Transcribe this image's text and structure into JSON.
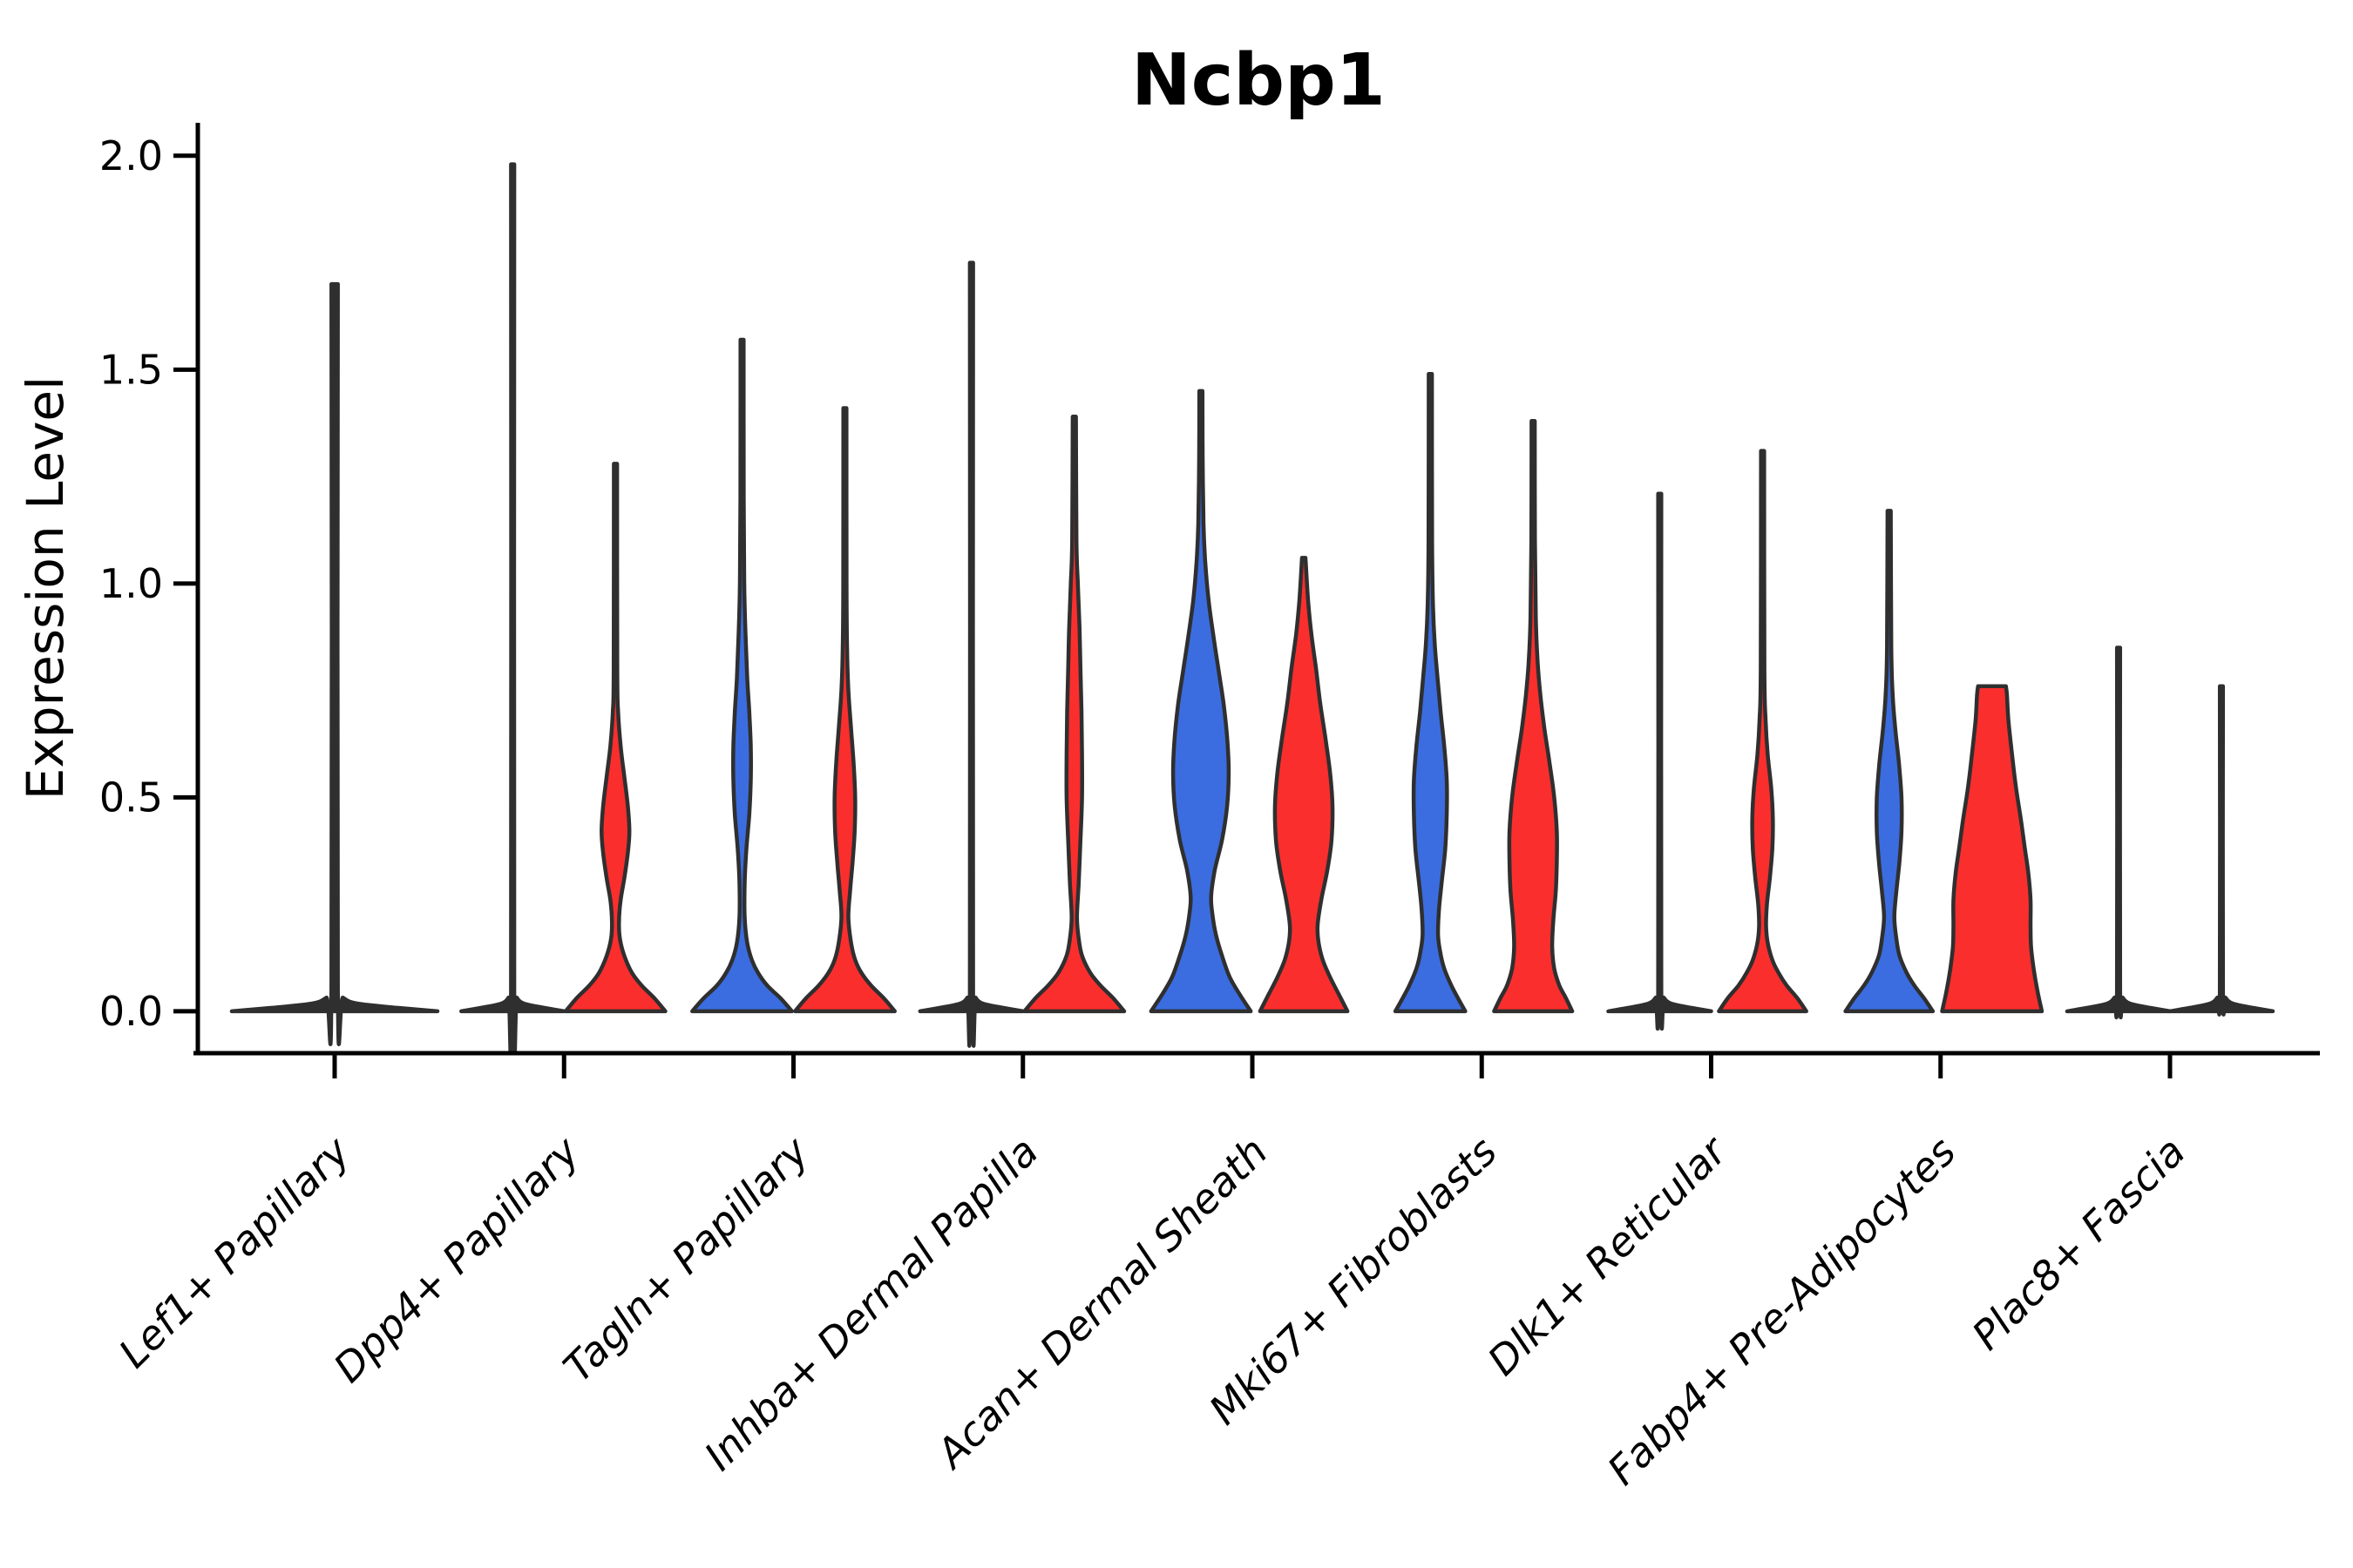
{
  "header": {
    "title": "Ncbp1"
  },
  "axes": {
    "y": {
      "label": "Expression Level",
      "ticks": [
        {
          "value": 0.0,
          "label": "0.0"
        },
        {
          "value": 0.5,
          "label": "0.5"
        },
        {
          "value": 1.0,
          "label": "1.0"
        },
        {
          "value": 1.5,
          "label": "1.5"
        },
        {
          "value": 2.0,
          "label": "2.0"
        }
      ],
      "range": [
        -0.098,
        2.077
      ]
    },
    "x": {
      "tick_labels": [
        "Lef1+ Papillary",
        "Dpp4+ Papillary",
        "Tagln+ Papillary",
        "Inhba+ Dermal Papilla",
        "Acan+ Dermal Sheath",
        "Mki67+ Fibroblasts",
        "Dlk1+ Reticular",
        "Fabp4+ Pre-Adipocytes",
        "Plac8+ Fascia"
      ]
    }
  },
  "colors": {
    "blue": "#3B6DE0",
    "red": "#FB2E2E",
    "outline": "#2F2F2F",
    "axis": "#000000",
    "flat_fill": "#2F2F2F"
  },
  "chart_data": {
    "type": "violin",
    "title": "Ncbp1",
    "ylabel": "Expression Level",
    "ylim": [
      -0.098,
      2.077
    ],
    "grid": false,
    "legend": "none",
    "categories": [
      "Lef1+ Papillary",
      "Dpp4+ Papillary",
      "Tagln+ Papillary",
      "Inhba+ Dermal Papilla",
      "Acan+ Dermal Sheath",
      "Mki67+ Fibroblasts",
      "Dlk1+ Reticular",
      "Fabp4+ Pre-Adipocytes",
      "Plac8+ Fascia"
    ],
    "series": [
      {
        "id": "left-violin",
        "color": "#3B6DE0"
      },
      {
        "id": "right-violin",
        "color": "#FB2E2E"
      }
    ],
    "violins": [
      {
        "category": 0,
        "side": "center",
        "fill": "flat",
        "max_expression": 1.7,
        "width_scale": 2.0,
        "profile": [
          [
            0,
            1
          ],
          [
            0.008,
            0.62
          ],
          [
            0.018,
            0.22
          ],
          [
            0.032,
            0.08
          ],
          [
            0.05,
            0.031
          ],
          [
            1.7,
            0.031
          ]
        ]
      },
      {
        "category": 1,
        "side": "left",
        "fill": "flat",
        "max_expression": 1.98,
        "width_scale": 1.0,
        "profile": [
          [
            0,
            1
          ],
          [
            0.008,
            0.62
          ],
          [
            0.018,
            0.22
          ],
          [
            0.032,
            0.08
          ],
          [
            0.05,
            0.031
          ],
          [
            1.98,
            0.031
          ]
        ]
      },
      {
        "category": 1,
        "side": "right",
        "fill": "red",
        "max_expression": 1.28,
        "width_scale": 1.0,
        "profile": [
          [
            0,
            0.97
          ],
          [
            0.03,
            0.76
          ],
          [
            0.06,
            0.51
          ],
          [
            0.09,
            0.32
          ],
          [
            0.13,
            0.17
          ],
          [
            0.17,
            0.085
          ],
          [
            0.21,
            0.068
          ],
          [
            0.26,
            0.1
          ],
          [
            0.31,
            0.17
          ],
          [
            0.37,
            0.24
          ],
          [
            0.42,
            0.27
          ],
          [
            0.48,
            0.24
          ],
          [
            0.55,
            0.17
          ],
          [
            0.62,
            0.1
          ],
          [
            0.7,
            0.051
          ],
          [
            0.8,
            0.034
          ],
          [
            1.28,
            0.031
          ]
        ]
      },
      {
        "category": 2,
        "side": "left",
        "fill": "blue",
        "max_expression": 1.57,
        "width_scale": 1.0,
        "profile": [
          [
            0,
            0.97
          ],
          [
            0.03,
            0.75
          ],
          [
            0.06,
            0.49
          ],
          [
            0.09,
            0.31
          ],
          [
            0.12,
            0.19
          ],
          [
            0.16,
            0.1
          ],
          [
            0.22,
            0.051
          ],
          [
            0.3,
            0.051
          ],
          [
            0.38,
            0.085
          ],
          [
            0.46,
            0.14
          ],
          [
            0.54,
            0.17
          ],
          [
            0.62,
            0.17
          ],
          [
            0.7,
            0.14
          ],
          [
            0.78,
            0.1
          ],
          [
            0.88,
            0.068
          ],
          [
            1.0,
            0.042
          ],
          [
            1.2,
            0.032
          ],
          [
            1.57,
            0.031
          ]
        ]
      },
      {
        "category": 2,
        "side": "right",
        "fill": "red",
        "max_expression": 1.41,
        "width_scale": 1.0,
        "profile": [
          [
            0,
            0.97
          ],
          [
            0.03,
            0.76
          ],
          [
            0.06,
            0.51
          ],
          [
            0.09,
            0.32
          ],
          [
            0.12,
            0.2
          ],
          [
            0.16,
            0.12
          ],
          [
            0.22,
            0.068
          ],
          [
            0.28,
            0.1
          ],
          [
            0.35,
            0.15
          ],
          [
            0.42,
            0.19
          ],
          [
            0.5,
            0.2
          ],
          [
            0.58,
            0.17
          ],
          [
            0.66,
            0.12
          ],
          [
            0.75,
            0.068
          ],
          [
            0.85,
            0.042
          ],
          [
            1.0,
            0.032
          ],
          [
            1.41,
            0.031
          ]
        ]
      },
      {
        "category": 3,
        "side": "left",
        "fill": "flat",
        "max_expression": 1.75,
        "width_scale": 1.0,
        "profile": [
          [
            0,
            1
          ],
          [
            0.008,
            0.62
          ],
          [
            0.018,
            0.22
          ],
          [
            0.032,
            0.08
          ],
          [
            0.05,
            0.031
          ],
          [
            1.75,
            0.031
          ]
        ]
      },
      {
        "category": 3,
        "side": "right",
        "fill": "red",
        "max_expression": 1.39,
        "width_scale": 1.0,
        "profile": [
          [
            0,
            0.97
          ],
          [
            0.03,
            0.76
          ],
          [
            0.06,
            0.51
          ],
          [
            0.09,
            0.31
          ],
          [
            0.13,
            0.15
          ],
          [
            0.17,
            0.085
          ],
          [
            0.22,
            0.051
          ],
          [
            0.3,
            0.085
          ],
          [
            0.4,
            0.12
          ],
          [
            0.5,
            0.15
          ],
          [
            0.6,
            0.15
          ],
          [
            0.7,
            0.14
          ],
          [
            0.8,
            0.12
          ],
          [
            0.9,
            0.1
          ],
          [
            1.0,
            0.068
          ],
          [
            1.1,
            0.042
          ],
          [
            1.39,
            0.031
          ]
        ]
      },
      {
        "category": 4,
        "side": "left",
        "fill": "blue",
        "max_expression": 1.45,
        "width_scale": 1.0,
        "profile": [
          [
            0,
            0.97
          ],
          [
            0.04,
            0.75
          ],
          [
            0.08,
            0.56
          ],
          [
            0.13,
            0.41
          ],
          [
            0.18,
            0.29
          ],
          [
            0.23,
            0.22
          ],
          [
            0.27,
            0.2
          ],
          [
            0.33,
            0.27
          ],
          [
            0.4,
            0.41
          ],
          [
            0.48,
            0.51
          ],
          [
            0.56,
            0.54
          ],
          [
            0.64,
            0.51
          ],
          [
            0.72,
            0.44
          ],
          [
            0.8,
            0.34
          ],
          [
            0.88,
            0.24
          ],
          [
            0.96,
            0.15
          ],
          [
            1.05,
            0.085
          ],
          [
            1.14,
            0.051
          ],
          [
            1.3,
            0.034
          ],
          [
            1.45,
            0.031
          ]
        ]
      },
      {
        "category": 4,
        "side": "right",
        "fill": "red",
        "max_expression": 1.06,
        "width_scale": 1.0,
        "profile": [
          [
            0,
            0.85
          ],
          [
            0.04,
            0.68
          ],
          [
            0.08,
            0.51
          ],
          [
            0.12,
            0.37
          ],
          [
            0.16,
            0.29
          ],
          [
            0.2,
            0.27
          ],
          [
            0.26,
            0.34
          ],
          [
            0.33,
            0.46
          ],
          [
            0.4,
            0.54
          ],
          [
            0.48,
            0.56
          ],
          [
            0.56,
            0.51
          ],
          [
            0.64,
            0.42
          ],
          [
            0.72,
            0.32
          ],
          [
            0.8,
            0.24
          ],
          [
            0.88,
            0.15
          ],
          [
            0.96,
            0.085
          ],
          [
            1.06,
            0.034
          ]
        ]
      },
      {
        "category": 5,
        "side": "left",
        "fill": "blue",
        "max_expression": 1.49,
        "width_scale": 1.0,
        "profile": [
          [
            0,
            0.68
          ],
          [
            0.03,
            0.54
          ],
          [
            0.06,
            0.41
          ],
          [
            0.1,
            0.27
          ],
          [
            0.14,
            0.19
          ],
          [
            0.18,
            0.15
          ],
          [
            0.24,
            0.17
          ],
          [
            0.3,
            0.22
          ],
          [
            0.38,
            0.29
          ],
          [
            0.46,
            0.32
          ],
          [
            0.54,
            0.32
          ],
          [
            0.62,
            0.27
          ],
          [
            0.7,
            0.2
          ],
          [
            0.78,
            0.14
          ],
          [
            0.86,
            0.085
          ],
          [
            0.95,
            0.051
          ],
          [
            1.1,
            0.034
          ],
          [
            1.49,
            0.031
          ]
        ]
      },
      {
        "category": 5,
        "side": "right",
        "fill": "red",
        "max_expression": 1.38,
        "width_scale": 1.0,
        "profile": [
          [
            0,
            0.76
          ],
          [
            0.03,
            0.64
          ],
          [
            0.06,
            0.51
          ],
          [
            0.1,
            0.41
          ],
          [
            0.15,
            0.37
          ],
          [
            0.21,
            0.39
          ],
          [
            0.28,
            0.44
          ],
          [
            0.35,
            0.46
          ],
          [
            0.42,
            0.46
          ],
          [
            0.5,
            0.41
          ],
          [
            0.58,
            0.32
          ],
          [
            0.66,
            0.22
          ],
          [
            0.74,
            0.14
          ],
          [
            0.82,
            0.085
          ],
          [
            0.92,
            0.051
          ],
          [
            1.1,
            0.034
          ],
          [
            1.38,
            0.031
          ]
        ]
      },
      {
        "category": 6,
        "side": "left",
        "fill": "flat",
        "max_expression": 1.21,
        "width_scale": 1.0,
        "profile": [
          [
            0,
            1
          ],
          [
            0.008,
            0.62
          ],
          [
            0.018,
            0.22
          ],
          [
            0.032,
            0.08
          ],
          [
            0.05,
            0.031
          ],
          [
            1.21,
            0.031
          ]
        ]
      },
      {
        "category": 6,
        "side": "right",
        "fill": "red",
        "max_expression": 1.31,
        "width_scale": 1.0,
        "profile": [
          [
            0,
            0.85
          ],
          [
            0.03,
            0.68
          ],
          [
            0.06,
            0.47
          ],
          [
            0.09,
            0.31
          ],
          [
            0.12,
            0.19
          ],
          [
            0.16,
            0.1
          ],
          [
            0.2,
            0.068
          ],
          [
            0.25,
            0.085
          ],
          [
            0.31,
            0.14
          ],
          [
            0.38,
            0.19
          ],
          [
            0.45,
            0.2
          ],
          [
            0.52,
            0.17
          ],
          [
            0.6,
            0.1
          ],
          [
            0.68,
            0.059
          ],
          [
            0.8,
            0.036
          ],
          [
            1.31,
            0.031
          ]
        ]
      },
      {
        "category": 7,
        "side": "left",
        "fill": "blue",
        "max_expression": 1.17,
        "width_scale": 1.0,
        "profile": [
          [
            0,
            0.85
          ],
          [
            0.03,
            0.68
          ],
          [
            0.06,
            0.49
          ],
          [
            0.09,
            0.34
          ],
          [
            0.13,
            0.2
          ],
          [
            0.17,
            0.14
          ],
          [
            0.22,
            0.1
          ],
          [
            0.28,
            0.14
          ],
          [
            0.35,
            0.2
          ],
          [
            0.42,
            0.24
          ],
          [
            0.5,
            0.24
          ],
          [
            0.58,
            0.19
          ],
          [
            0.66,
            0.12
          ],
          [
            0.74,
            0.068
          ],
          [
            0.85,
            0.042
          ],
          [
            1.17,
            0.031
          ]
        ]
      },
      {
        "category": 7,
        "side": "right",
        "fill": "red",
        "max_expression": 0.76,
        "width_scale": 1.0,
        "profile": [
          [
            0,
            0.97
          ],
          [
            0.05,
            0.88
          ],
          [
            0.1,
            0.81
          ],
          [
            0.15,
            0.76
          ],
          [
            0.2,
            0.75
          ],
          [
            0.26,
            0.75
          ],
          [
            0.32,
            0.71
          ],
          [
            0.38,
            0.64
          ],
          [
            0.45,
            0.56
          ],
          [
            0.52,
            0.47
          ],
          [
            0.6,
            0.39
          ],
          [
            0.68,
            0.32
          ],
          [
            0.74,
            0.29
          ],
          [
            0.76,
            0.27
          ]
        ]
      },
      {
        "category": 8,
        "side": "left",
        "fill": "flat",
        "max_expression": 0.85,
        "width_scale": 1.0,
        "profile": [
          [
            0,
            1
          ],
          [
            0.008,
            0.62
          ],
          [
            0.018,
            0.22
          ],
          [
            0.032,
            0.08
          ],
          [
            0.05,
            0.031
          ],
          [
            0.85,
            0.031
          ]
        ]
      },
      {
        "category": 8,
        "side": "right",
        "fill": "flat",
        "max_expression": 0.76,
        "width_scale": 1.0,
        "profile": [
          [
            0,
            1
          ],
          [
            0.008,
            0.62
          ],
          [
            0.018,
            0.22
          ],
          [
            0.032,
            0.08
          ],
          [
            0.05,
            0.031
          ],
          [
            0.76,
            0.031
          ]
        ]
      }
    ]
  }
}
